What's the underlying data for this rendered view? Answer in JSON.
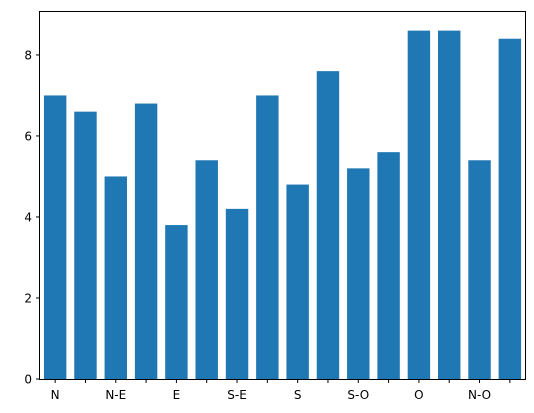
{
  "colors": {
    "bar": "#1f77b4",
    "axis": "#000000",
    "background": "#ffffff"
  },
  "chart_data": {
    "type": "bar",
    "title": "",
    "xlabel": "",
    "ylabel": "",
    "ylim": [
      0,
      9.06
    ],
    "yticks": [
      0,
      2,
      4,
      6,
      8
    ],
    "grid": false,
    "legend": "none",
    "categories": [
      "N",
      "",
      "N-E",
      "",
      "E",
      "",
      "S-E",
      "",
      "S",
      "",
      "S-O",
      "",
      "O",
      "",
      "N-O",
      ""
    ],
    "values": [
      7.0,
      6.6,
      5.0,
      6.8,
      3.8,
      5.4,
      4.2,
      7.0,
      4.8,
      7.6,
      5.2,
      5.6,
      8.6,
      8.6,
      5.4,
      8.4
    ]
  }
}
